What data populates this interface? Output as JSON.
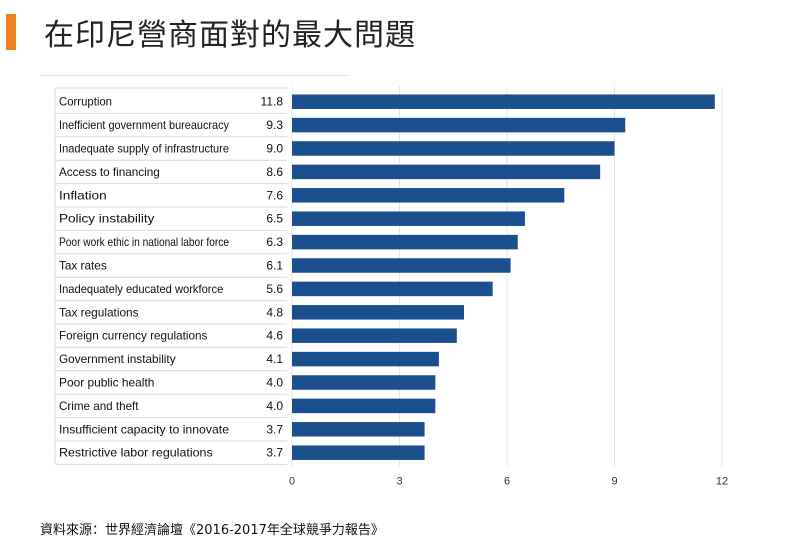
{
  "header": {
    "title": "在印尼營商面對的最大問題",
    "accent_color": "#f0811e"
  },
  "source": {
    "text": "資料來源：世界經濟論壇《2016-2017年全球競爭力報告》"
  },
  "chart_data": {
    "type": "bar",
    "orientation": "horizontal",
    "title": "",
    "xlabel": "",
    "ylabel": "",
    "bar_color": "#1b4f8e",
    "xlim": [
      0,
      12
    ],
    "xticks": [
      0,
      3,
      6,
      9,
      12
    ],
    "grid": "vertical",
    "categories": [
      "Corruption",
      "Inefficient government bureaucracy",
      "Inadequate supply of infrastructure",
      "Access to financing",
      "Inflation",
      "Policy instability",
      "Poor work ethic in national labor force",
      "Tax rates",
      "Inadequately educated workforce",
      "Tax regulations",
      "Foreign currency regulations",
      "Government instability",
      "Poor public health",
      "Crime and theft",
      "Insufficient capacity to innovate",
      "Restrictive labor regulations"
    ],
    "values": [
      11.8,
      9.3,
      9.0,
      8.6,
      7.6,
      6.5,
      6.3,
      6.1,
      5.6,
      4.8,
      4.6,
      4.1,
      4.0,
      4.0,
      3.7,
      3.7
    ],
    "value_labels": [
      "11.8",
      "9.3",
      "9.0",
      "8.6",
      "7.6",
      "6.5",
      "6.3",
      "6.1",
      "5.6",
      "4.8",
      "4.6",
      "4.1",
      "4.0",
      "4.0",
      "3.7",
      "3.7"
    ]
  }
}
